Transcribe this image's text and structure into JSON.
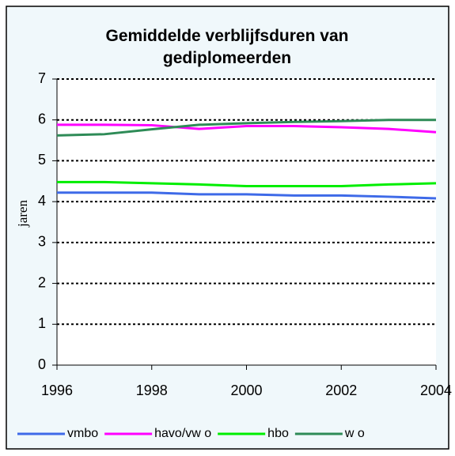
{
  "chart_data": {
    "type": "line",
    "title": "Gemiddelde verblijfsduren van gediplomeerden",
    "y_label": "jaren",
    "x": [
      1996,
      1997,
      1998,
      1999,
      2000,
      2001,
      2002,
      2003,
      2004
    ],
    "xlim": [
      1996,
      2004
    ],
    "xticks": [
      1996,
      1998,
      2000,
      2002,
      2004
    ],
    "ylim": [
      0,
      7
    ],
    "yticks": [
      0,
      1,
      2,
      3,
      4,
      5,
      6,
      7
    ],
    "grid": true,
    "legend": "bottom",
    "series": [
      {
        "name": "vmbo",
        "color": "#3e6ae8",
        "values": [
          4.22,
          4.22,
          4.22,
          4.18,
          4.18,
          4.15,
          4.15,
          4.12,
          4.08
        ]
      },
      {
        "name": "havo/vw o",
        "color": "#ff00ff",
        "values": [
          5.88,
          5.88,
          5.87,
          5.78,
          5.85,
          5.85,
          5.82,
          5.78,
          5.7
        ]
      },
      {
        "name": "hbo",
        "color": "#00ee00",
        "values": [
          4.48,
          4.48,
          4.45,
          4.42,
          4.38,
          4.38,
          4.38,
          4.42,
          4.45
        ]
      },
      {
        "name": "w o",
        "color": "#2e8b57",
        "values": [
          5.62,
          5.65,
          5.77,
          5.88,
          5.92,
          5.95,
          5.97,
          6.0,
          6.0
        ]
      }
    ]
  }
}
